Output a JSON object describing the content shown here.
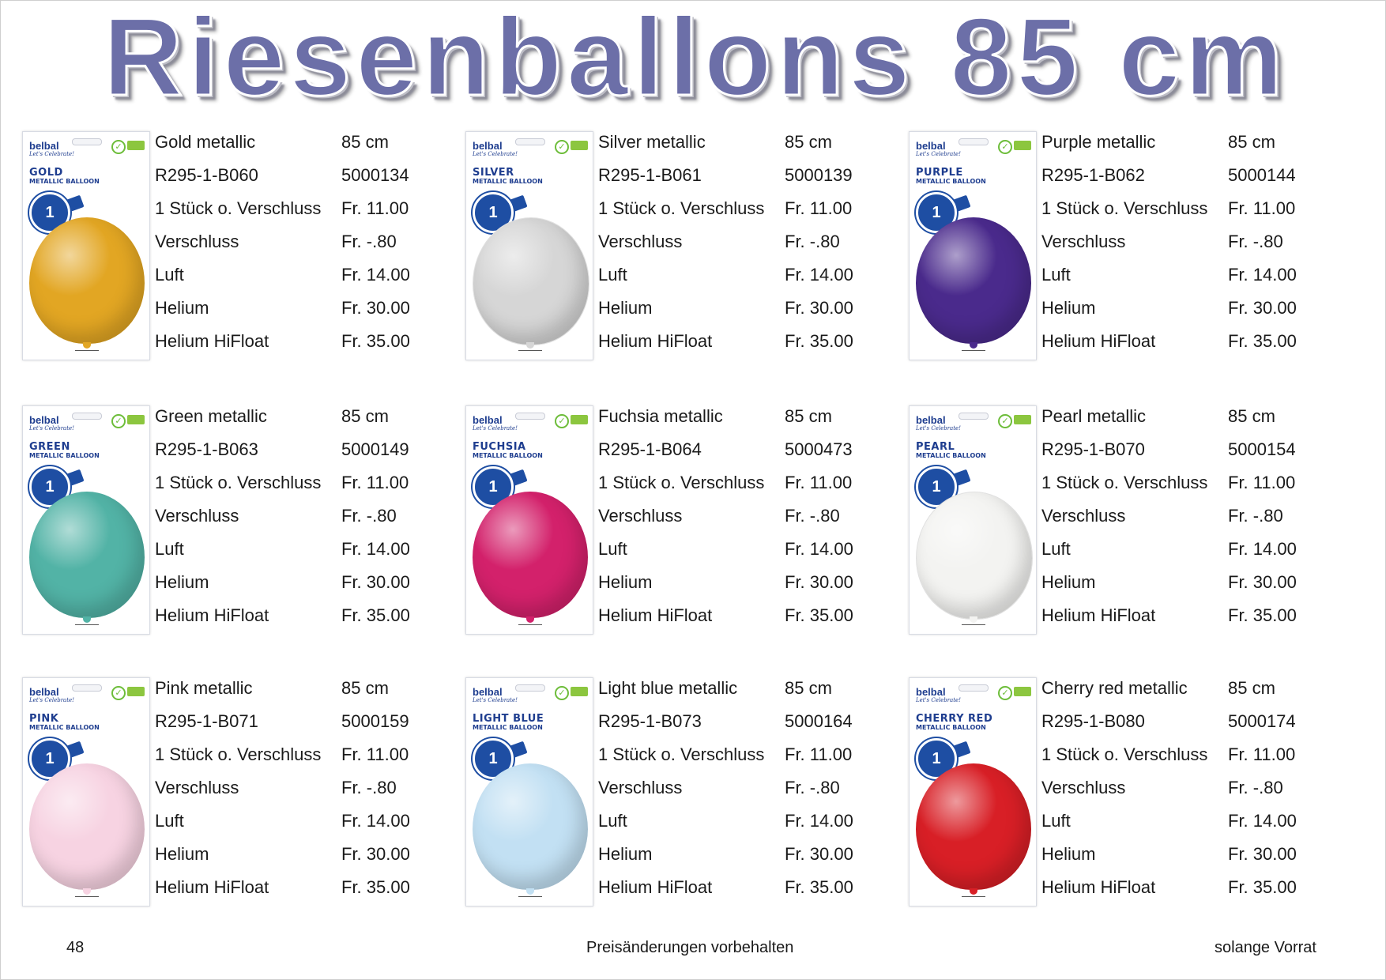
{
  "title": "Riesenballons 85 cm",
  "package": {
    "brand": "belbal",
    "brand_tagline": "Let's Celebrate!",
    "subtitle": "METALLIC BALLOON",
    "badge": "1"
  },
  "products": [
    {
      "name": "Gold metallic",
      "size": "85 cm",
      "code": "R295-1-B060",
      "article": "5000134",
      "package_label": "GOLD",
      "color": "#e2a623",
      "rows": [
        {
          "label": "1 Stück o. Verschluss",
          "price": "Fr. 11.00"
        },
        {
          "label": "Verschluss",
          "price": "Fr. -.80"
        },
        {
          "label": "Luft",
          "price": "Fr. 14.00"
        },
        {
          "label": "Helium",
          "price": "Fr. 30.00"
        },
        {
          "label": "Helium HiFloat",
          "price": "Fr. 35.00"
        }
      ]
    },
    {
      "name": "Silver metallic",
      "size": "85 cm",
      "code": "R295-1-B061",
      "article": "5000139",
      "package_label": "SILVER",
      "color": "#d6d6d6",
      "rows": [
        {
          "label": "1 Stück o. Verschluss",
          "price": "Fr. 11.00"
        },
        {
          "label": "Verschluss",
          "price": "Fr. -.80"
        },
        {
          "label": "Luft",
          "price": "Fr. 14.00"
        },
        {
          "label": "Helium",
          "price": "Fr. 30.00"
        },
        {
          "label": "Helium HiFloat",
          "price": "Fr. 35.00"
        }
      ]
    },
    {
      "name": "Purple metallic",
      "size": "85 cm",
      "code": "R295-1-B062",
      "article": "5000144",
      "package_label": "PURPLE",
      "color": "#4a2a8c",
      "rows": [
        {
          "label": "1 Stück o. Verschluss",
          "price": "Fr. 11.00"
        },
        {
          "label": "Verschluss",
          "price": "Fr. -.80"
        },
        {
          "label": "Luft",
          "price": "Fr. 14.00"
        },
        {
          "label": "Helium",
          "price": "Fr. 30.00"
        },
        {
          "label": "Helium HiFloat",
          "price": "Fr. 35.00"
        }
      ]
    },
    {
      "name": "Green metallic",
      "size": "85 cm",
      "code": "R295-1-B063",
      "article": "5000149",
      "package_label": "GREEN",
      "color": "#52b3a6",
      "rows": [
        {
          "label": "1 Stück o. Verschluss",
          "price": "Fr. 11.00"
        },
        {
          "label": "Verschluss",
          "price": "Fr. -.80"
        },
        {
          "label": "Luft",
          "price": "Fr. 14.00"
        },
        {
          "label": "Helium",
          "price": "Fr. 30.00"
        },
        {
          "label": "Helium HiFloat",
          "price": "Fr. 35.00"
        }
      ]
    },
    {
      "name": "Fuchsia metallic",
      "size": "85 cm",
      "code": "R295-1-B064",
      "article": "5000473",
      "package_label": "FUCHSIA",
      "color": "#d3216b",
      "rows": [
        {
          "label": "1 Stück o. Verschluss",
          "price": "Fr. 11.00"
        },
        {
          "label": "Verschluss",
          "price": "Fr. -.80"
        },
        {
          "label": "Luft",
          "price": "Fr. 14.00"
        },
        {
          "label": "Helium",
          "price": "Fr. 30.00"
        },
        {
          "label": "Helium HiFloat",
          "price": "Fr. 35.00"
        }
      ]
    },
    {
      "name": "Pearl metallic",
      "size": "85 cm",
      "code": "R295-1-B070",
      "article": "5000154",
      "package_label": "PEARL",
      "color": "#f3f3f1",
      "rows": [
        {
          "label": "1 Stück o. Verschluss",
          "price": "Fr. 11.00"
        },
        {
          "label": "Verschluss",
          "price": "Fr. -.80"
        },
        {
          "label": "Luft",
          "price": "Fr. 14.00"
        },
        {
          "label": "Helium",
          "price": "Fr. 30.00"
        },
        {
          "label": "Helium HiFloat",
          "price": "Fr. 35.00"
        }
      ]
    },
    {
      "name": "Pink metallic",
      "size": "85 cm",
      "code": "R295-1-B071",
      "article": "5000159",
      "package_label": "PINK",
      "color": "#f7d3e2",
      "rows": [
        {
          "label": "1 Stück o. Verschluss",
          "price": "Fr. 11.00"
        },
        {
          "label": "Verschluss",
          "price": "Fr. -.80"
        },
        {
          "label": "Luft",
          "price": "Fr. 14.00"
        },
        {
          "label": "Helium",
          "price": "Fr. 30.00"
        },
        {
          "label": "Helium HiFloat",
          "price": "Fr. 35.00"
        }
      ]
    },
    {
      "name": "Light blue metallic",
      "size": "85 cm",
      "code": "R295-1-B073",
      "article": "5000164",
      "package_label": "LIGHT BLUE",
      "color": "#c2e0f3",
      "rows": [
        {
          "label": "1 Stück o. Verschluss",
          "price": "Fr. 11.00"
        },
        {
          "label": "Verschluss",
          "price": "Fr. -.80"
        },
        {
          "label": "Luft",
          "price": "Fr. 14.00"
        },
        {
          "label": "Helium",
          "price": "Fr. 30.00"
        },
        {
          "label": "Helium HiFloat",
          "price": "Fr. 35.00"
        }
      ]
    },
    {
      "name": "Cherry red metallic",
      "size": "85 cm",
      "code": "R295-1-B080",
      "article": "5000174",
      "package_label": "CHERRY RED",
      "color": "#d81f26",
      "rows": [
        {
          "label": "1 Stück o. Verschluss",
          "price": "Fr. 11.00"
        },
        {
          "label": "Verschluss",
          "price": "Fr. -.80"
        },
        {
          "label": "Luft",
          "price": "Fr. 14.00"
        },
        {
          "label": "Helium",
          "price": "Fr. 30.00"
        },
        {
          "label": "Helium HiFloat",
          "price": "Fr. 35.00"
        }
      ]
    }
  ],
  "footer": {
    "page_number": "48",
    "note": "Preisänderungen vorbehalten",
    "availability": "solange Vorrat"
  }
}
